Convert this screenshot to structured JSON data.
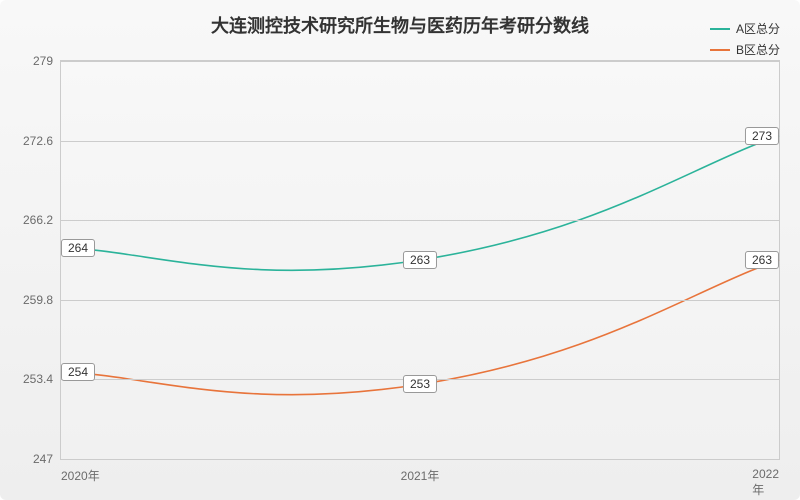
{
  "chart": {
    "type": "line",
    "title": "大连测控技术研究所生物与医药历年考研分数线",
    "title_fontsize": 18,
    "background_gradient": [
      "#f8f8f8",
      "#eeeeee"
    ],
    "grid_color": "#cccccc",
    "text_color": "#333333",
    "tick_color": "#6b6b6b",
    "x_categories": [
      "2020年",
      "2021年",
      "2022年"
    ],
    "y_ticks": [
      247,
      253.4,
      259.8,
      266.2,
      272.6,
      279
    ],
    "y_min": 247,
    "y_max": 279,
    "series": [
      {
        "name": "A区总分",
        "color": "#2bb39a",
        "values": [
          264,
          263,
          273
        ],
        "line_width": 1.6
      },
      {
        "name": "B区总分",
        "color": "#e8743b",
        "values": [
          254,
          253,
          263
        ],
        "line_width": 1.6
      }
    ],
    "legend_position": "top-right",
    "label_fontsize": 12,
    "smooth": true
  }
}
